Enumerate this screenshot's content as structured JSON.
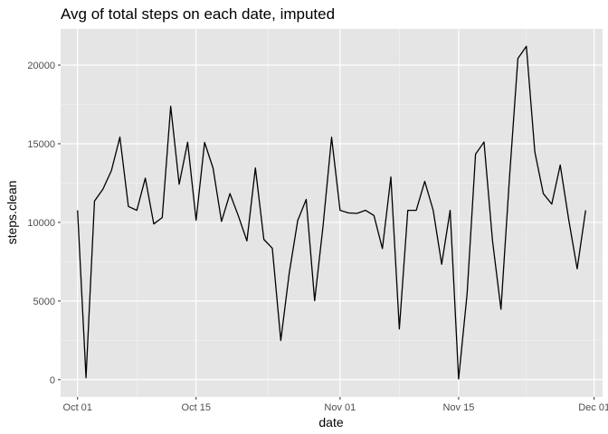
{
  "chart_data": {
    "type": "line",
    "title": "Avg of total steps on each date, imputed",
    "xlabel": "date",
    "ylabel": "steps.clean",
    "xlim": [
      "2012-09-29",
      "2012-12-02"
    ],
    "ylim": [
      -1100,
      22300
    ],
    "x_ticks": [
      {
        "label": "Oct 01",
        "date": "2012-10-01"
      },
      {
        "label": "Oct 15",
        "date": "2012-10-15"
      },
      {
        "label": "Nov 01",
        "date": "2012-11-01"
      },
      {
        "label": "Nov 15",
        "date": "2012-11-15"
      },
      {
        "label": "Dec 01",
        "date": "2012-12-01"
      }
    ],
    "y_ticks": [
      0,
      5000,
      10000,
      15000,
      20000
    ],
    "grid": true,
    "line_color": "#000000",
    "panel_color": "#e5e5e5",
    "x": [
      "2012-10-01",
      "2012-10-02",
      "2012-10-03",
      "2012-10-04",
      "2012-10-05",
      "2012-10-06",
      "2012-10-07",
      "2012-10-08",
      "2012-10-09",
      "2012-10-10",
      "2012-10-11",
      "2012-10-12",
      "2012-10-13",
      "2012-10-14",
      "2012-10-15",
      "2012-10-16",
      "2012-10-17",
      "2012-10-18",
      "2012-10-19",
      "2012-10-20",
      "2012-10-21",
      "2012-10-22",
      "2012-10-23",
      "2012-10-24",
      "2012-10-25",
      "2012-10-26",
      "2012-10-27",
      "2012-10-28",
      "2012-10-29",
      "2012-10-30",
      "2012-10-31",
      "2012-11-01",
      "2012-11-02",
      "2012-11-03",
      "2012-11-04",
      "2012-11-05",
      "2012-11-06",
      "2012-11-07",
      "2012-11-08",
      "2012-11-09",
      "2012-11-10",
      "2012-11-11",
      "2012-11-12",
      "2012-11-13",
      "2012-11-14",
      "2012-11-15",
      "2012-11-16",
      "2012-11-17",
      "2012-11-18",
      "2012-11-19",
      "2012-11-20",
      "2012-11-21",
      "2012-11-22",
      "2012-11-23",
      "2012-11-24",
      "2012-11-25",
      "2012-11-26",
      "2012-11-27",
      "2012-11-28",
      "2012-11-29",
      "2012-11-30"
    ],
    "values": [
      10766,
      126,
      11352,
      12116,
      13294,
      15420,
      11015,
      10766,
      12811,
      9900,
      10304,
      17382,
      12426,
      15098,
      10139,
      15084,
      13452,
      10056,
      11829,
      10395,
      8821,
      13460,
      8918,
      8355,
      2492,
      6778,
      10119,
      11458,
      5018,
      9819,
      15414,
      10766,
      10600,
      10571,
      10766,
      10439,
      8334,
      12883,
      3219,
      10766,
      10766,
      12608,
      10765,
      7336,
      10766,
      41,
      5441,
      14339,
      15110,
      8841,
      4472,
      12787,
      20427,
      21194,
      14478,
      11834,
      11162,
      13646,
      10183,
      7047,
      10766
    ]
  }
}
